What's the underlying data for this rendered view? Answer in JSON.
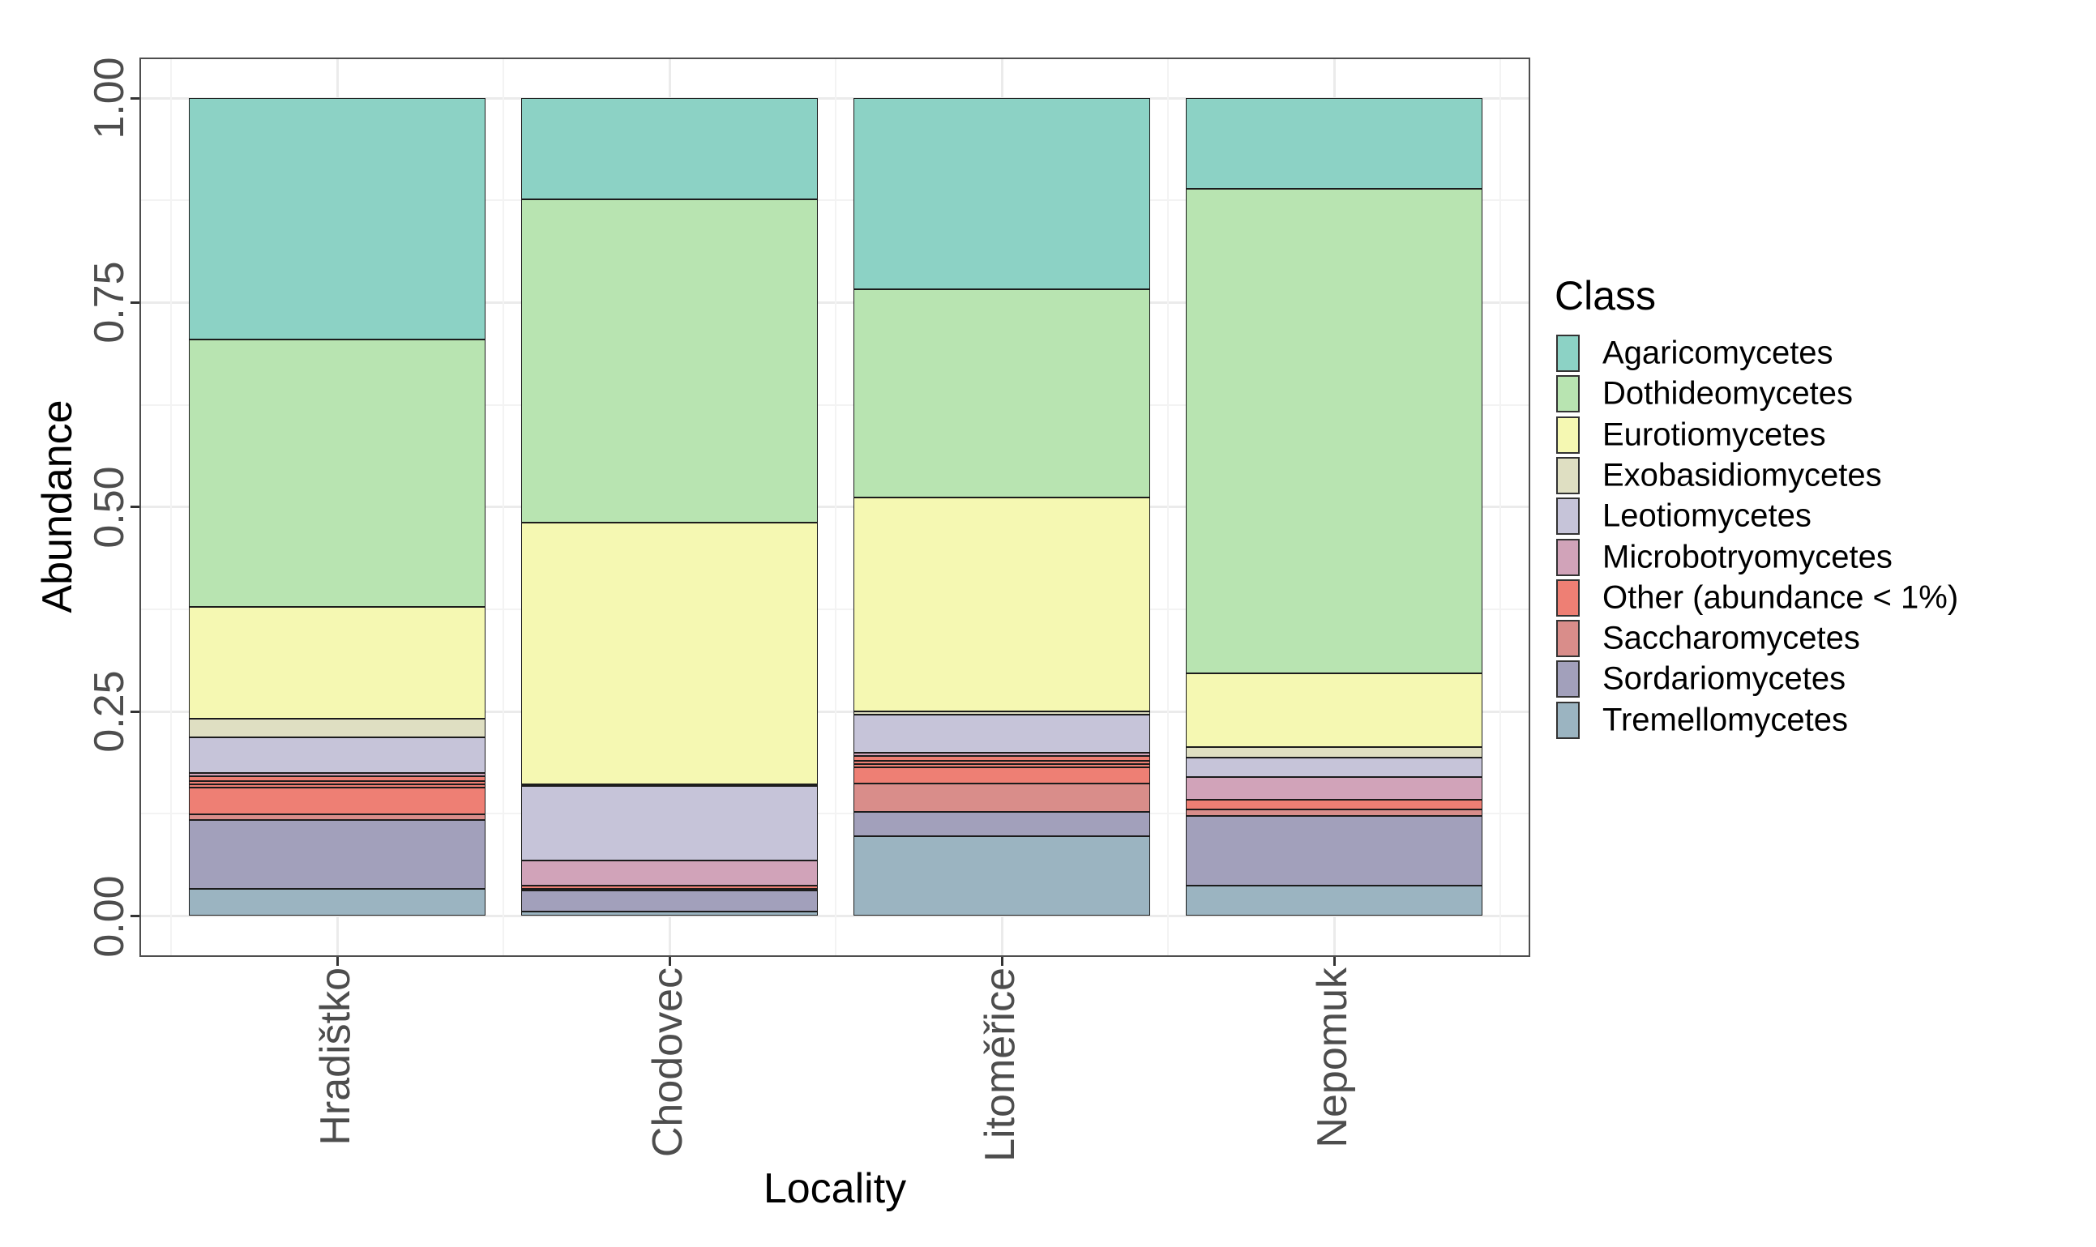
{
  "chart_data": {
    "type": "bar",
    "stacked": true,
    "title": "",
    "xlabel": "Locality",
    "ylabel": "Abundance",
    "legend_title": "Class",
    "legend_position": "right",
    "grid": true,
    "ylim": [
      0,
      1
    ],
    "yticks": [
      {
        "v": 0.0,
        "label": "0.00"
      },
      {
        "v": 0.25,
        "label": "0.25"
      },
      {
        "v": 0.5,
        "label": "0.50"
      },
      {
        "v": 0.75,
        "label": "0.75"
      },
      {
        "v": 1.0,
        "label": "1.00"
      }
    ],
    "yticks_minor": [
      0.125,
      0.375,
      0.625,
      0.875
    ],
    "categories": [
      "Hradištko",
      "Chodovec",
      "Litoměřice",
      "Nepomuk"
    ],
    "series": [
      {
        "name": "Agaricomycetes",
        "color": "#8CD2C5",
        "values": [
          0.295,
          0.124,
          0.234,
          0.111
        ]
      },
      {
        "name": "Dothideomycetes",
        "color": "#B8E4B1",
        "values": [
          0.327,
          0.395,
          0.254,
          0.592
        ]
      },
      {
        "name": "Eurotiomycetes",
        "color": "#F5F8B2",
        "values": [
          0.137,
          0.32,
          0.262,
          0.09
        ]
      },
      {
        "name": "Exobasidiomycetes",
        "color": "#DFDFC2",
        "values": [
          0.023,
          0.002,
          0.004,
          0.013
        ]
      },
      {
        "name": "Leotiomycetes",
        "color": "#C6C4D9",
        "values": [
          0.043,
          0.091,
          0.046,
          0.024
        ]
      },
      {
        "name": "Microbotryomycetes",
        "color": "#D1A3B9",
        "values": [
          0.004,
          0.031,
          0.004,
          0.028
        ]
      },
      {
        "name": "Other (abundance < 1%)",
        "color": "#EE7F74",
        "values": [
          0.047,
          0.004,
          0.034,
          0.012
        ]
      },
      {
        "name": "Saccharomycetes",
        "color": "#D98D8A",
        "values": [
          0.007,
          0.002,
          0.035,
          0.008
        ]
      },
      {
        "name": "Sordariomycetes",
        "color": "#A2A0BB",
        "values": [
          0.084,
          0.026,
          0.029,
          0.085
        ]
      },
      {
        "name": "Tremellomycetes",
        "color": "#9BB4C1",
        "values": [
          0.033,
          0.005,
          0.098,
          0.037
        ]
      }
    ],
    "sub_segment_weights": {
      "Hradištko": {
        "Other (abundance < 1%)": [
          6,
          4,
          4,
          33
        ]
      },
      "Litoměřice": {
        "Other (abundance < 1%)": [
          6,
          4,
          4,
          20
        ]
      }
    }
  },
  "colors": {
    "grid_major": "#EBEBEB",
    "grid_minor": "#F3F3F3",
    "panel_border": "#4E4E4E",
    "segment_border": "#1C1C1C",
    "axis_text": "#4D4D4D",
    "title_text": "#000000"
  }
}
